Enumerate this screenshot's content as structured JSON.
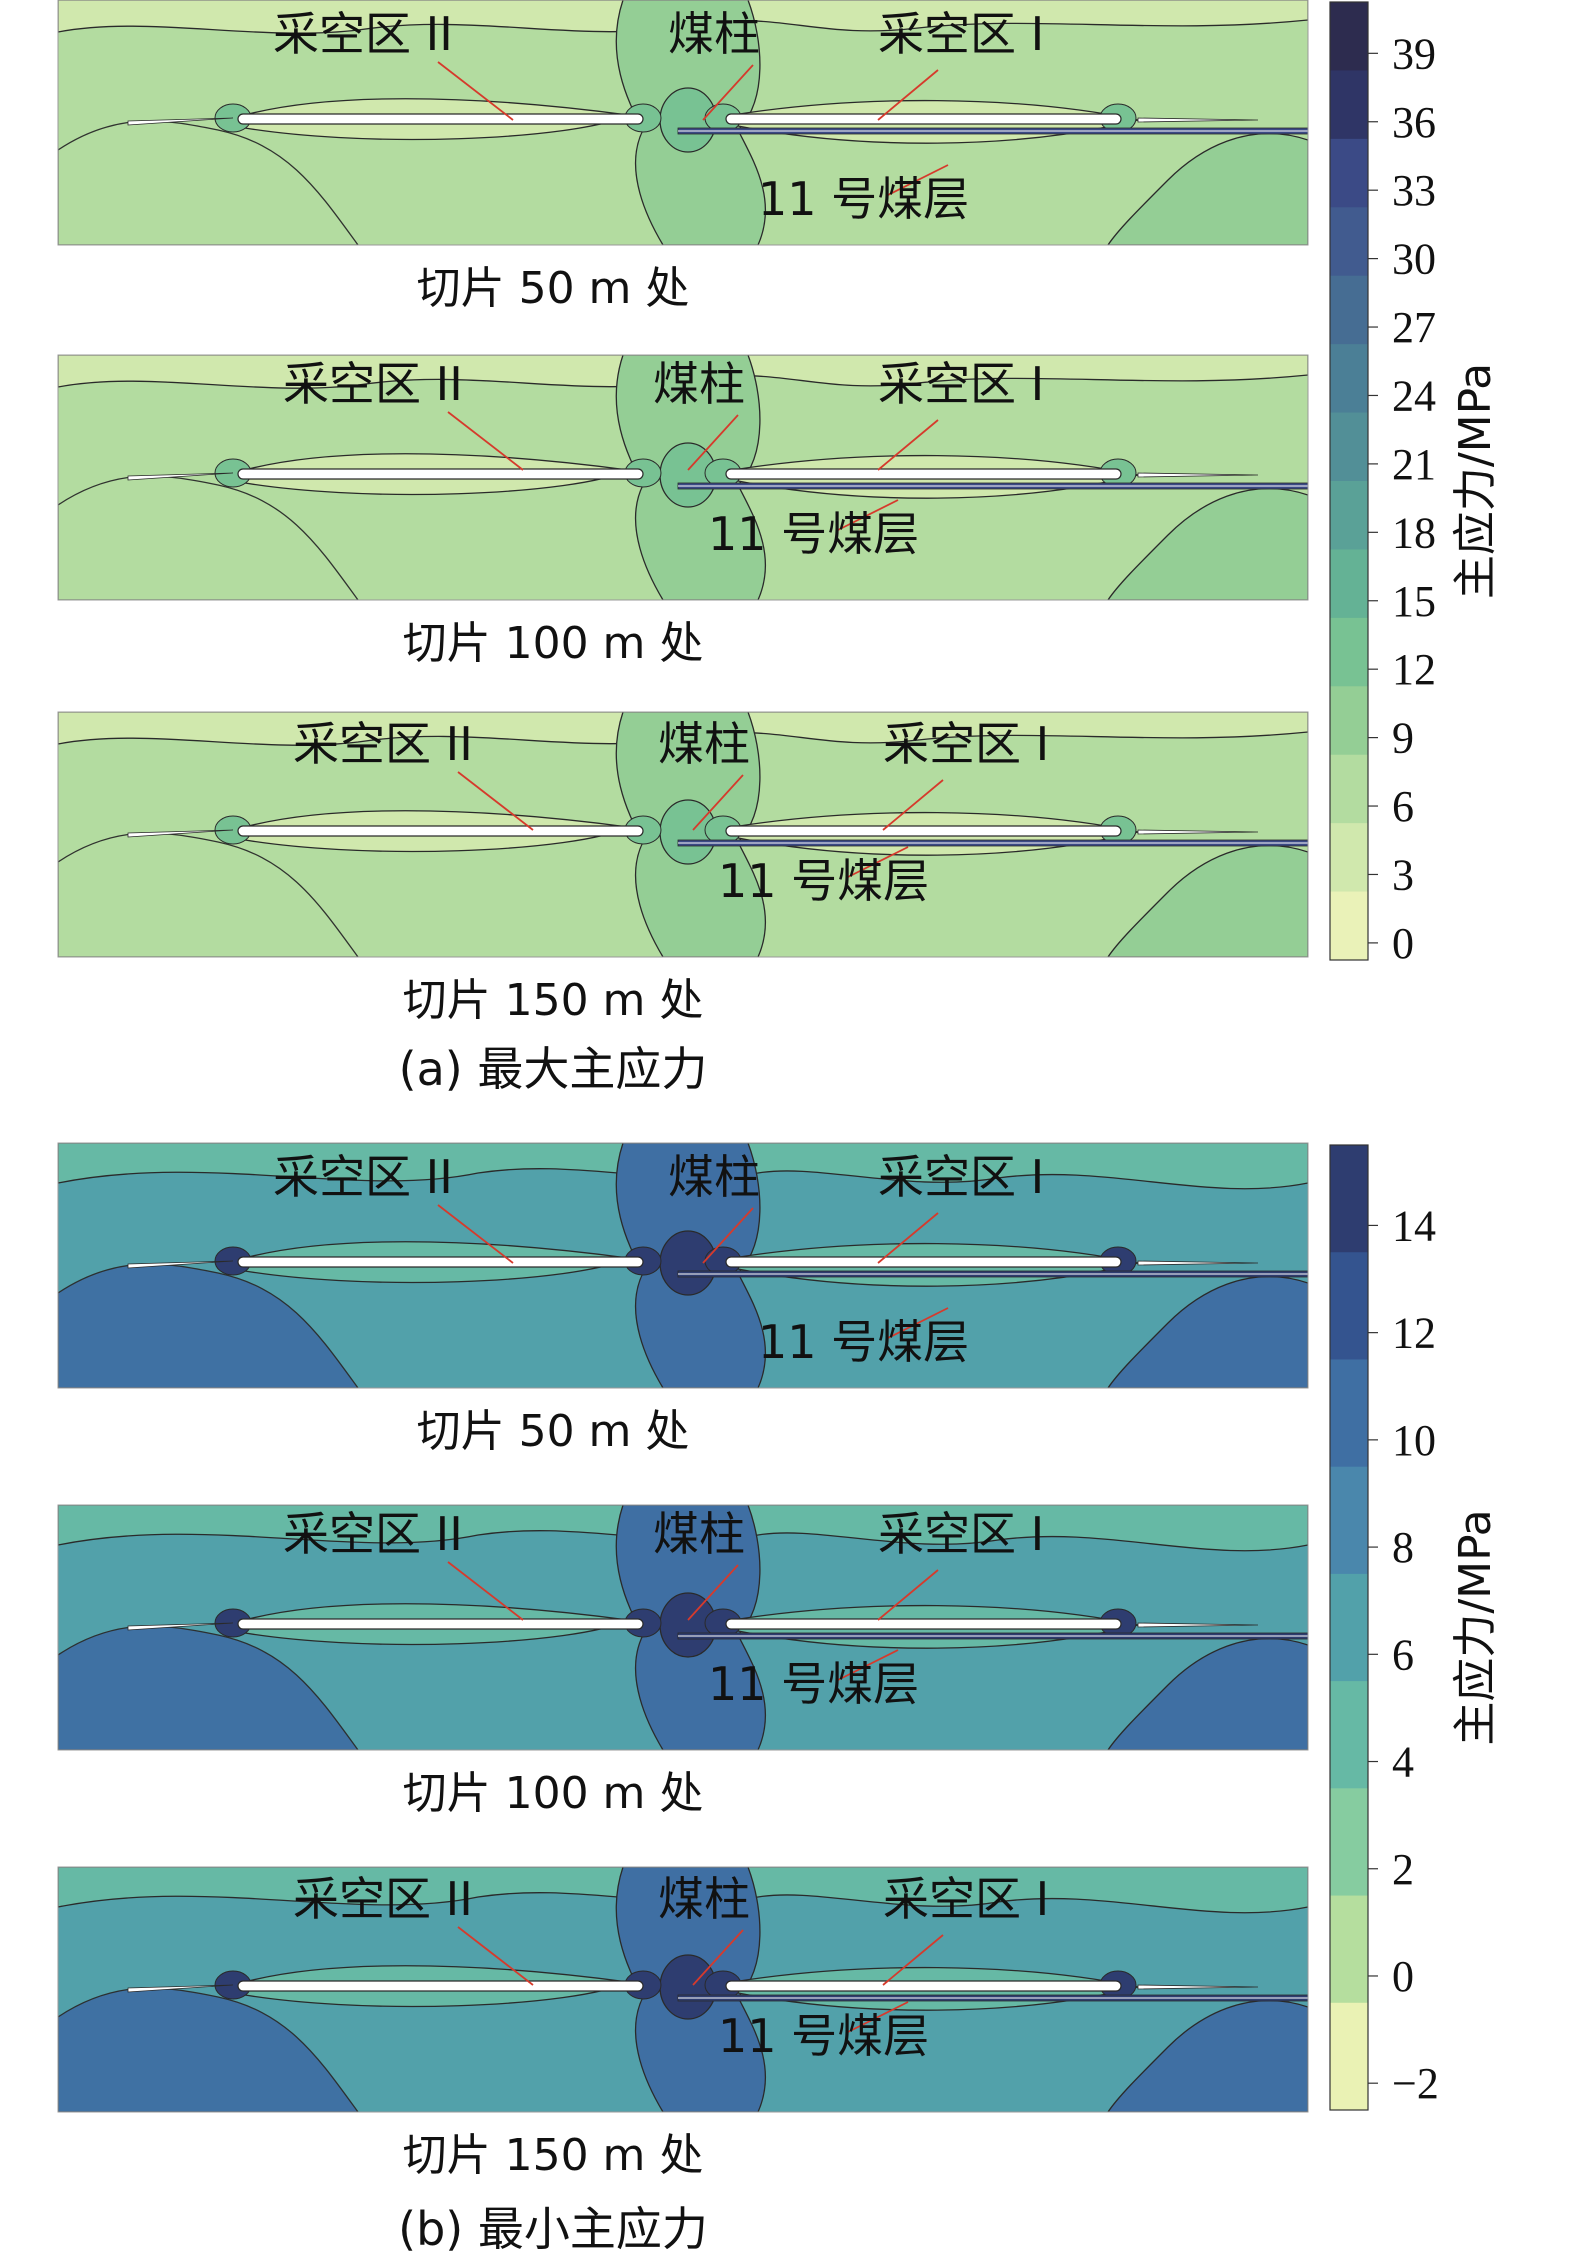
{
  "figure": {
    "part_a": {
      "caption": "(a) 最大主应力",
      "colorbar_label": "主应力/MPa",
      "colorbar_ticks": [
        "39",
        "36",
        "33",
        "30",
        "27",
        "24",
        "21",
        "18",
        "15",
        "12",
        "9",
        "6",
        "3",
        "0"
      ],
      "colorbar_colors": [
        "#2d2c4f",
        "#2f3566",
        "#3b4a86",
        "#415b8f",
        "#466d93",
        "#4b7f96",
        "#528f97",
        "#5aa197",
        "#64b295",
        "#78c293",
        "#94ce95",
        "#b3dca0",
        "#d0e8ad",
        "#eaf2b8"
      ],
      "slices": [
        {
          "caption": "切片 50 m 处",
          "labels": {
            "goaf2": "采空区 II",
            "pillar": "煤柱",
            "goaf1": "采空区 I",
            "seam": "11 号煤层"
          }
        },
        {
          "caption": "切片 100 m 处",
          "labels": {
            "goaf2": "采空区 II",
            "pillar": "煤柱",
            "goaf1": "采空区 I",
            "seam": "11 号煤层"
          }
        },
        {
          "caption": "切片 150 m 处",
          "labels": {
            "goaf2": "采空区 II",
            "pillar": "煤柱",
            "goaf1": "采空区 I",
            "seam": "11 号煤层"
          }
        }
      ]
    },
    "part_b": {
      "caption": "(b) 最小主应力",
      "colorbar_label": "主应力/MPa",
      "colorbar_ticks": [
        "14",
        "12",
        "10",
        "8",
        "6",
        "4",
        "2",
        "0",
        "−2"
      ],
      "colorbar_colors": [
        "#2e3d70",
        "#34548f",
        "#3f6fa3",
        "#4a87ac",
        "#52a1aa",
        "#66b9a5",
        "#86cca0",
        "#b5de9e",
        "#eaf2b4"
      ],
      "slices": [
        {
          "caption": "切片 50 m 处",
          "labels": {
            "goaf2": "采空区 II",
            "pillar": "煤柱",
            "goaf1": "采空区 I",
            "seam": "11 号煤层"
          }
        },
        {
          "caption": "切片 100 m 处",
          "labels": {
            "goaf2": "采空区 II",
            "pillar": "煤柱",
            "goaf1": "采空区 I",
            "seam": "11 号煤层"
          }
        },
        {
          "caption": "切片 150 m 处",
          "labels": {
            "goaf2": "采空区 II",
            "pillar": "煤柱",
            "goaf1": "采空区 I",
            "seam": "11 号煤层"
          }
        }
      ]
    },
    "palettes": {
      "a": {
        "base": "#b3dca0",
        "mid": "#94ce95",
        "deep": "#78c293",
        "pale": "#d0e8ad",
        "dark": "#3b4a86"
      },
      "b": {
        "base": "#52a1aa",
        "mid": "#66b9a5",
        "pale": "#86cca0",
        "deep": "#3f6fa3",
        "dark": "#2e3d70"
      }
    }
  }
}
